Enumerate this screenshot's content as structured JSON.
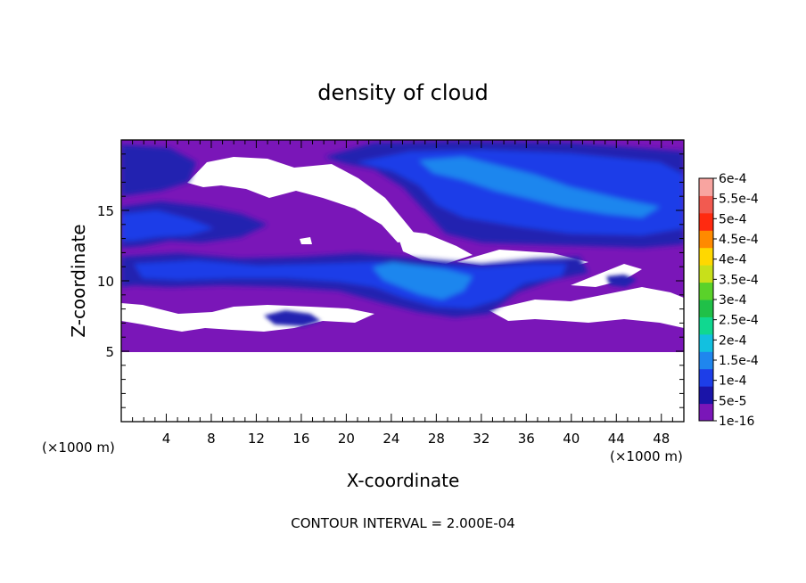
{
  "chart_data": {
    "type": "heatmap",
    "title": "density of cloud",
    "xlabel": "X-coordinate",
    "ylabel": "Z-coordinate",
    "x_unit_left": "(×1000 m)",
    "x_unit_right": "(×1000 m)",
    "xlim": [
      0,
      50
    ],
    "ylim": [
      0,
      20
    ],
    "x_ticks": [
      4,
      8,
      12,
      16,
      20,
      24,
      28,
      32,
      36,
      40,
      44,
      48
    ],
    "y_ticks": [
      5,
      10,
      15
    ],
    "footer": "CONTOUR INTERVAL = 2.000E-04",
    "colorbar": {
      "levels": [
        "1e-16",
        "5e-5",
        "1e-4",
        "1.5e-4",
        "2e-4",
        "2.5e-4",
        "3e-4",
        "3.5e-4",
        "4e-4",
        "4.5e-4",
        "5e-4",
        "5.5e-4",
        "6e-4"
      ],
      "colors": [
        "#7a16b8",
        "#1a14a8",
        "#1d3ee8",
        "#1f86ee",
        "#12c0e0",
        "#10d890",
        "#20c048",
        "#5ad22a",
        "#c8e01a",
        "#ffd800",
        "#ff8a00",
        "#ff2a10",
        "#f25a50",
        "#f8a4a0"
      ]
    },
    "cloud_region": {
      "base_z": 5,
      "top_z": 20,
      "background_level": "1e-16",
      "clear_patches": [
        {
          "z": 17.5,
          "x_range": [
            6,
            24
          ]
        },
        {
          "z": 14.0,
          "x_range": [
            26,
            30
          ]
        },
        {
          "z": 7.5,
          "x_range": [
            0,
            22
          ]
        },
        {
          "z": 8.5,
          "x_range": [
            33,
            50
          ]
        }
      ],
      "high_density_bands": [
        {
          "z_range": [
            15,
            19.5
          ],
          "x_range": [
            19,
            50
          ],
          "level": "1e-4"
        },
        {
          "z_range": [
            9.5,
            12
          ],
          "x_range": [
            0,
            42
          ],
          "level": "1e-4"
        },
        {
          "z_range": [
            8.5,
            11.5
          ],
          "x_range": [
            22,
            34
          ],
          "level": "1.5e-4"
        }
      ]
    }
  }
}
